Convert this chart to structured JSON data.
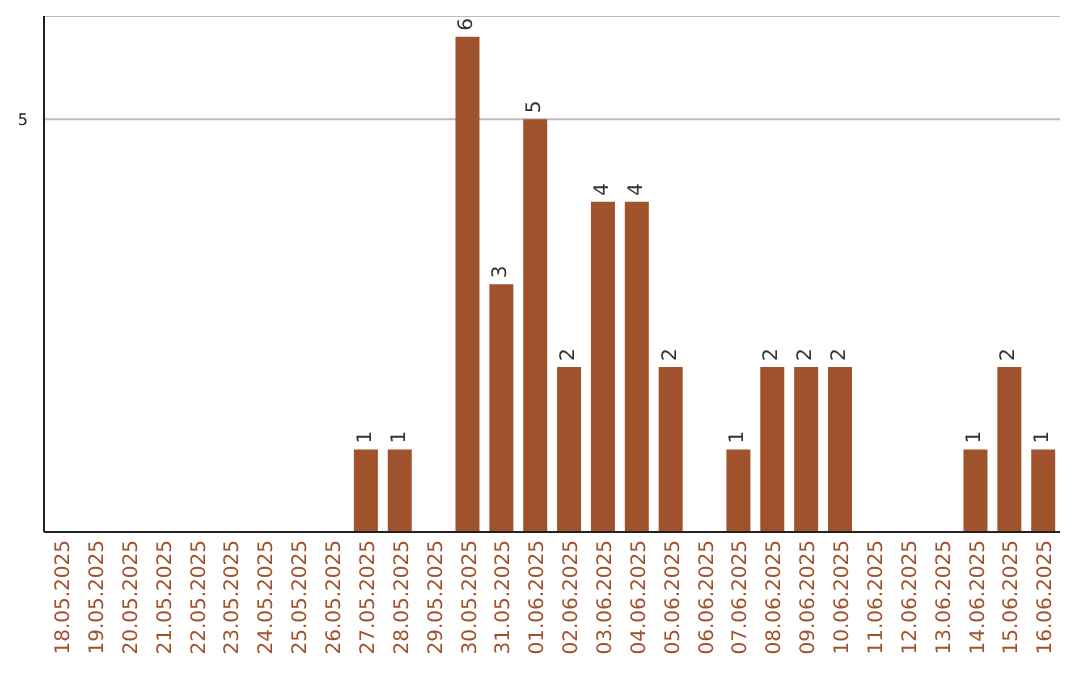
{
  "chart_data": {
    "type": "bar",
    "categories": [
      "18.05.2025",
      "19.05.2025",
      "20.05.2025",
      "21.05.2025",
      "22.05.2025",
      "23.05.2025",
      "24.05.2025",
      "25.05.2025",
      "26.05.2025",
      "27.05.2025",
      "28.05.2025",
      "29.05.2025",
      "30.05.2025",
      "31.05.2025",
      "01.06.2025",
      "02.06.2025",
      "03.06.2025",
      "04.06.2025",
      "05.06.2025",
      "06.06.2025",
      "07.06.2025",
      "08.06.2025",
      "09.06.2025",
      "10.06.2025",
      "11.06.2025",
      "12.06.2025",
      "13.06.2025",
      "14.06.2025",
      "15.06.2025",
      "16.06.2025"
    ],
    "values": [
      0,
      0,
      0,
      0,
      0,
      0,
      0,
      0,
      0,
      1,
      1,
      0,
      6,
      3,
      5,
      2,
      4,
      4,
      2,
      0,
      1,
      2,
      2,
      2,
      0,
      0,
      0,
      1,
      2,
      1
    ],
    "value_labels": [
      null,
      null,
      null,
      null,
      null,
      null,
      null,
      null,
      null,
      "1",
      "1",
      null,
      "6",
      "3",
      "5",
      "2",
      "4",
      "4",
      "2",
      null,
      "1",
      "2",
      "2",
      "2",
      null,
      null,
      null,
      "1",
      "2",
      "1"
    ],
    "color": "#a0522d",
    "ylim": [
      0,
      6.25
    ],
    "yticks": [
      5
    ],
    "grid": "y"
  }
}
